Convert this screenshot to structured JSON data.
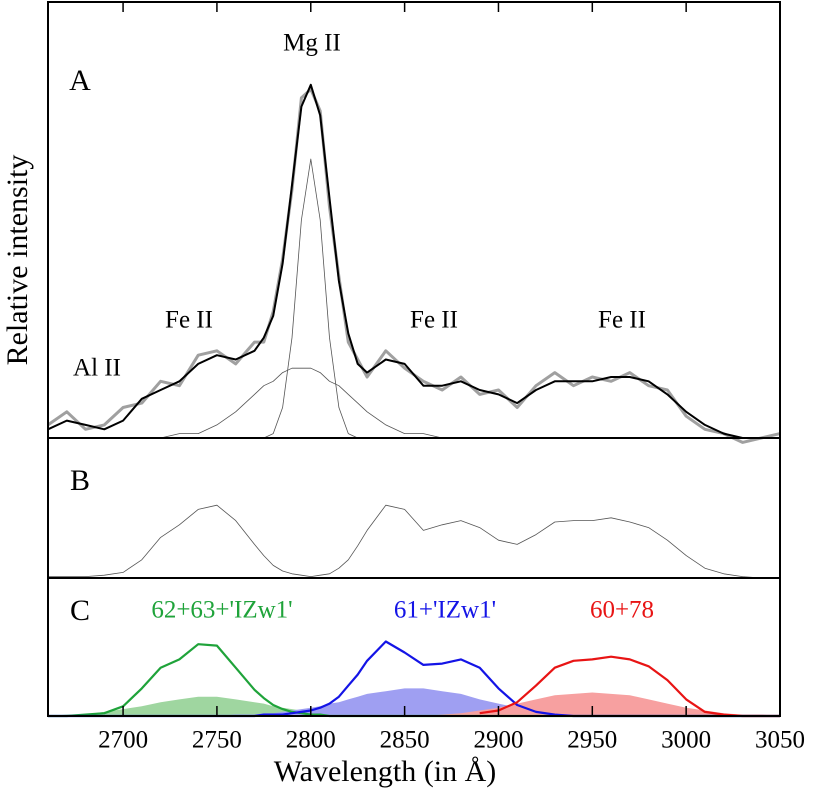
{
  "chart_data": [
    {
      "type": "line",
      "panel": "A",
      "ylabel": "Relative intensity",
      "annotations": [
        "Al II",
        "Fe II",
        "Mg II",
        "Fe II",
        "Fe II"
      ],
      "xlim": [
        2660,
        3050
      ],
      "ylim": [
        0,
        1
      ],
      "x": [
        2660,
        2670,
        2680,
        2690,
        2700,
        2710,
        2720,
        2730,
        2740,
        2750,
        2760,
        2770,
        2775,
        2780,
        2785,
        2790,
        2795,
        2800,
        2805,
        2810,
        2815,
        2820,
        2825,
        2830,
        2840,
        2850,
        2860,
        2870,
        2880,
        2890,
        2900,
        2910,
        2920,
        2930,
        2940,
        2950,
        2960,
        2970,
        2980,
        2990,
        3000,
        3010,
        3020,
        3030,
        3040,
        3050
      ],
      "series": [
        {
          "color": "#a0a0a0",
          "values": [
            0.03,
            0.06,
            0.02,
            0.03,
            0.07,
            0.08,
            0.13,
            0.12,
            0.19,
            0.2,
            0.17,
            0.22,
            0.22,
            0.29,
            0.41,
            0.57,
            0.78,
            0.8,
            0.75,
            0.53,
            0.37,
            0.22,
            0.18,
            0.14,
            0.2,
            0.16,
            0.13,
            0.11,
            0.14,
            0.1,
            0.11,
            0.07,
            0.12,
            0.15,
            0.12,
            0.14,
            0.13,
            0.15,
            0.12,
            0.11,
            0.05,
            0.02,
            0.01,
            -0.01,
            0.0,
            0.01
          ]
        },
        {
          "color": "#000000",
          "values": [
            0.02,
            0.04,
            0.03,
            0.02,
            0.04,
            0.09,
            0.11,
            0.13,
            0.17,
            0.19,
            0.18,
            0.2,
            0.23,
            0.28,
            0.4,
            0.58,
            0.76,
            0.81,
            0.74,
            0.55,
            0.36,
            0.24,
            0.17,
            0.15,
            0.18,
            0.17,
            0.12,
            0.12,
            0.13,
            0.11,
            0.1,
            0.08,
            0.11,
            0.13,
            0.13,
            0.13,
            0.14,
            0.14,
            0.13,
            0.1,
            0.06,
            0.03,
            0.01,
            0.0,
            0.0,
            0.0
          ]
        },
        {
          "color": "#555555",
          "values": [
            0,
            0,
            0,
            0,
            0,
            0,
            0,
            0,
            0,
            0,
            0,
            0,
            0,
            0.01,
            0.07,
            0.23,
            0.5,
            0.64,
            0.5,
            0.23,
            0.07,
            0.01,
            0,
            0,
            0,
            0,
            0,
            0,
            0,
            0,
            0,
            0,
            0,
            0,
            0,
            0,
            0,
            0,
            0,
            0,
            0,
            0,
            0,
            0,
            0,
            0
          ]
        },
        {
          "color": "#555555",
          "values": [
            0,
            0,
            0,
            0,
            0,
            0,
            0,
            0.01,
            0.01,
            0.03,
            0.06,
            0.1,
            0.12,
            0.13,
            0.15,
            0.16,
            0.16,
            0.16,
            0.15,
            0.13,
            0.12,
            0.1,
            0.08,
            0.06,
            0.03,
            0.01,
            0.01,
            0,
            0,
            0,
            0,
            0,
            0,
            0,
            0,
            0,
            0,
            0,
            0,
            0,
            0,
            0,
            0,
            0,
            0,
            0
          ]
        }
      ]
    },
    {
      "type": "line",
      "panel": "B",
      "xlim": [
        2660,
        3050
      ],
      "ylim": [
        0,
        1
      ],
      "x": [
        2660,
        2670,
        2680,
        2690,
        2700,
        2710,
        2720,
        2730,
        2740,
        2750,
        2760,
        2770,
        2775,
        2780,
        2785,
        2790,
        2795,
        2800,
        2805,
        2810,
        2815,
        2820,
        2825,
        2830,
        2840,
        2850,
        2860,
        2870,
        2880,
        2890,
        2900,
        2910,
        2920,
        2930,
        2940,
        2950,
        2960,
        2970,
        2980,
        2990,
        3000,
        3010,
        3020,
        3030,
        3040,
        3050
      ],
      "series": [
        {
          "color": "#555555",
          "values": [
            0.01,
            0.01,
            0.01,
            0.02,
            0.04,
            0.13,
            0.29,
            0.38,
            0.49,
            0.52,
            0.41,
            0.24,
            0.16,
            0.09,
            0.05,
            0.03,
            0.02,
            0.01,
            0.02,
            0.03,
            0.07,
            0.13,
            0.23,
            0.34,
            0.52,
            0.49,
            0.34,
            0.38,
            0.41,
            0.36,
            0.27,
            0.24,
            0.31,
            0.4,
            0.41,
            0.41,
            0.43,
            0.4,
            0.36,
            0.27,
            0.16,
            0.07,
            0.03,
            0.01,
            0.0,
            0.0
          ]
        }
      ]
    },
    {
      "type": "line",
      "panel": "C",
      "xlabel": "Wavelength (in Å)",
      "xlim": [
        2660,
        3050
      ],
      "ylim": [
        0,
        1
      ],
      "xticks": [
        2700,
        2750,
        2800,
        2850,
        2900,
        2950,
        3000,
        3050
      ],
      "x": [
        2660,
        2670,
        2680,
        2690,
        2700,
        2710,
        2720,
        2730,
        2740,
        2750,
        2760,
        2770,
        2775,
        2780,
        2785,
        2790,
        2795,
        2800,
        2805,
        2810,
        2815,
        2820,
        2825,
        2830,
        2840,
        2850,
        2860,
        2870,
        2880,
        2890,
        2900,
        2910,
        2920,
        2930,
        2940,
        2950,
        2960,
        2970,
        2980,
        2990,
        3000,
        3010,
        3020,
        3030,
        3040,
        3050
      ],
      "series": [
        {
          "color": "#9fd6a0",
          "fill": true,
          "values": [
            0.0,
            0.01,
            0.01,
            0.03,
            0.05,
            0.07,
            0.1,
            0.12,
            0.14,
            0.14,
            0.12,
            0.1,
            0.09,
            0.07,
            0.06,
            0.05,
            0.04,
            0.03,
            0.02,
            0.01,
            0.01,
            0.01,
            0.0,
            0.0,
            0,
            0,
            0,
            0,
            0,
            0,
            0,
            0,
            0,
            0,
            0,
            0,
            0,
            0,
            0,
            0,
            0,
            0,
            0,
            0,
            0,
            0
          ]
        },
        {
          "color": "#9f9ff2",
          "fill": true,
          "values": [
            0,
            0,
            0,
            0,
            0,
            0,
            0,
            0,
            0,
            0.0,
            0.01,
            0.01,
            0.02,
            0.02,
            0.03,
            0.04,
            0.05,
            0.06,
            0.07,
            0.09,
            0.1,
            0.12,
            0.14,
            0.16,
            0.18,
            0.2,
            0.2,
            0.18,
            0.16,
            0.12,
            0.09,
            0.06,
            0.04,
            0.02,
            0.01,
            0.01,
            0.0,
            0,
            0,
            0,
            0,
            0,
            0,
            0,
            0,
            0
          ]
        },
        {
          "color": "#f7a0a0",
          "fill": true,
          "values": [
            0,
            0,
            0,
            0,
            0,
            0,
            0,
            0,
            0,
            0,
            0,
            0,
            0,
            0,
            0,
            0,
            0,
            0,
            0,
            0,
            0,
            0,
            0,
            0,
            0,
            0,
            0,
            0.01,
            0.02,
            0.04,
            0.06,
            0.09,
            0.12,
            0.15,
            0.16,
            0.17,
            0.16,
            0.15,
            0.12,
            0.09,
            0.06,
            0.04,
            0.02,
            0.01,
            0.01,
            0.0
          ]
        },
        {
          "name": "62+63+'IZw1'",
          "color": "#1fa33a",
          "values": [
            0.0,
            0.0,
            0.01,
            0.02,
            0.07,
            0.2,
            0.35,
            0.41,
            0.52,
            0.51,
            0.35,
            0.19,
            0.13,
            0.08,
            0.05,
            0.03,
            0.02,
            0.01,
            0.01,
            0.0,
            0.0,
            0.0,
            0.0,
            0.0,
            0,
            0,
            0,
            0,
            0,
            0,
            0,
            0,
            0,
            0,
            0,
            0,
            0,
            0,
            0,
            0,
            0,
            0,
            0,
            0,
            0,
            0
          ]
        },
        {
          "name": "61+'IZw1'",
          "color": "#1414e6",
          "values": [
            0,
            0,
            0,
            0,
            0,
            0,
            0,
            0,
            0,
            0,
            0,
            0,
            0.01,
            0.01,
            0.01,
            0.02,
            0.03,
            0.04,
            0.06,
            0.09,
            0.14,
            0.22,
            0.3,
            0.4,
            0.54,
            0.46,
            0.37,
            0.38,
            0.41,
            0.35,
            0.2,
            0.08,
            0.03,
            0.01,
            0.0,
            0,
            0,
            0,
            0,
            0,
            0,
            0,
            0,
            0,
            0,
            0
          ]
        },
        {
          "name": "60+78",
          "color": "#e81414",
          "values": [
            null,
            null,
            null,
            null,
            null,
            null,
            null,
            null,
            null,
            null,
            null,
            null,
            null,
            null,
            null,
            null,
            null,
            null,
            null,
            null,
            null,
            null,
            null,
            null,
            null,
            null,
            null,
            null,
            null,
            0.02,
            0.04,
            0.1,
            0.22,
            0.35,
            0.4,
            0.41,
            0.43,
            0.41,
            0.36,
            0.26,
            0.12,
            0.03,
            0.01,
            0.0,
            0.0,
            0.0
          ]
        }
      ]
    }
  ]
}
